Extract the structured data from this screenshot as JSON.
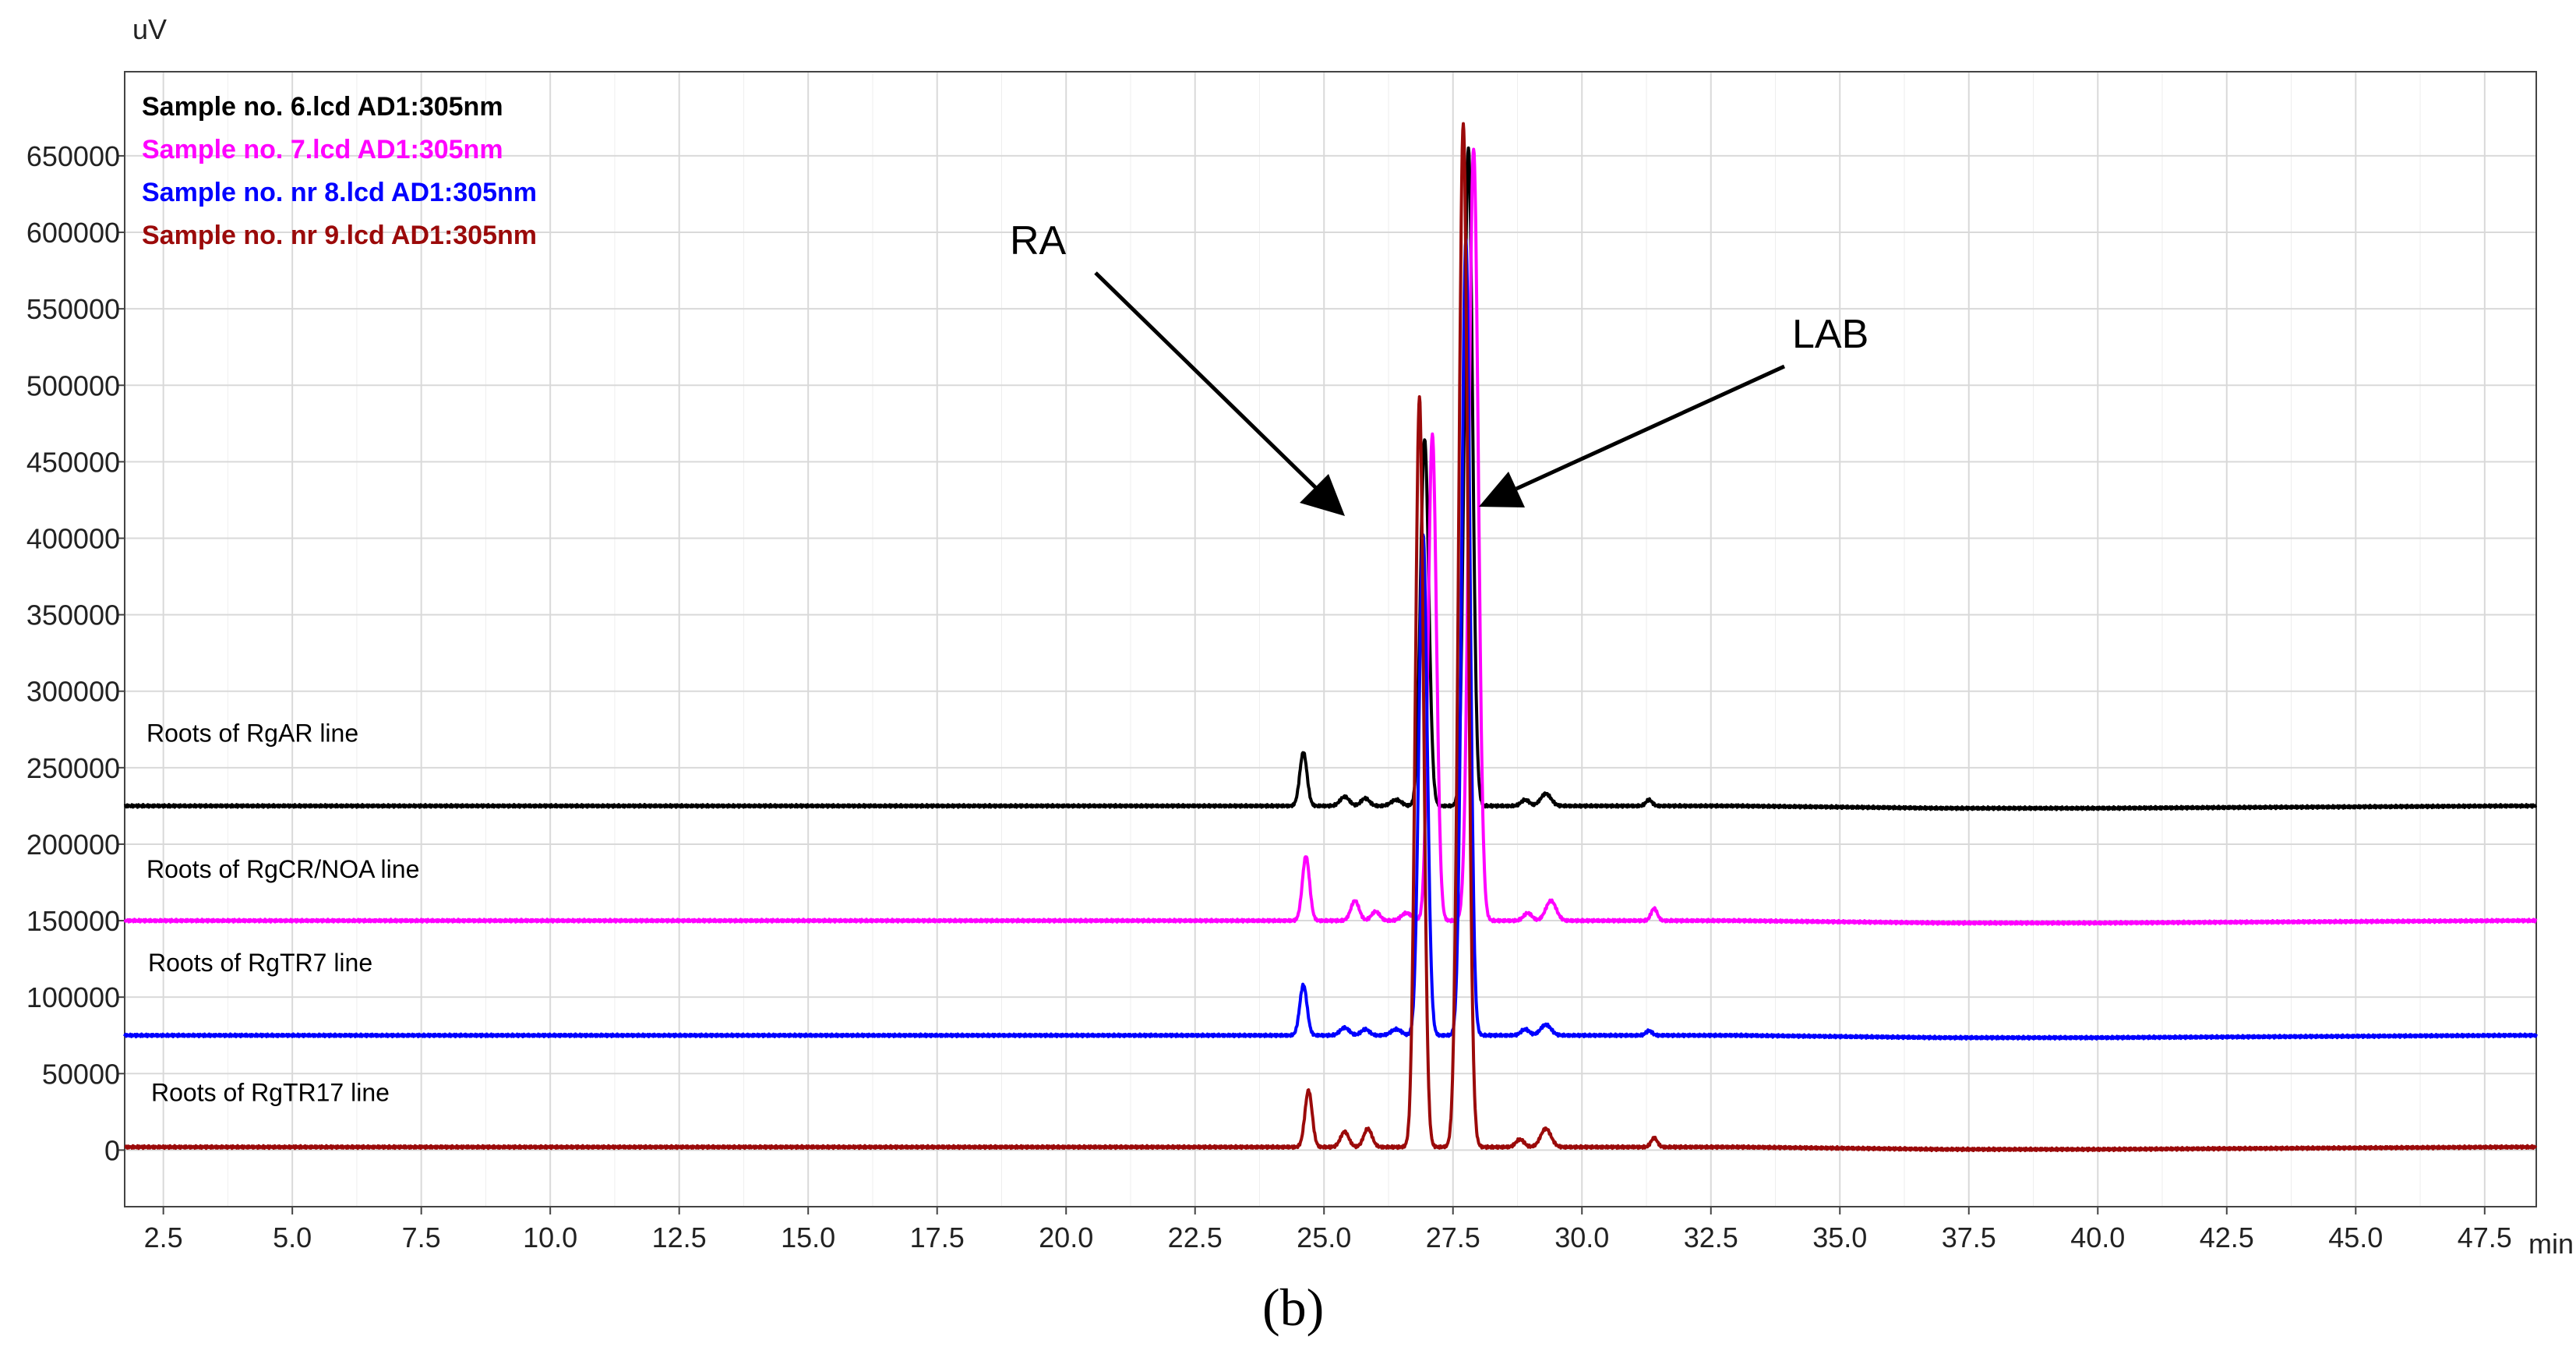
{
  "chart_data": {
    "type": "line",
    "title": "",
    "xlabel": "min",
    "ylabel": "uV",
    "xlim": [
      1.75,
      48.5
    ],
    "ylim": [
      -37000,
      705000
    ],
    "grid": true,
    "xticks": [
      "2.5",
      "5.0",
      "7.5",
      "10.0",
      "12.5",
      "15.0",
      "17.5",
      "20.0",
      "22.5",
      "25.0",
      "27.5",
      "30.0",
      "32.5",
      "35.0",
      "37.5",
      "40.0",
      "42.5",
      "45.0",
      "47.5"
    ],
    "yticks": [
      "0",
      "50000",
      "100000",
      "150000",
      "200000",
      "250000",
      "300000",
      "350000",
      "400000",
      "450000",
      "500000",
      "550000",
      "600000",
      "650000"
    ],
    "legend_position": "top-left",
    "legend": [
      "Sample no. 6.lcd AD1:305nm",
      "Sample no. 7.lcd AD1:305nm",
      "Sample no. nr 8.lcd AD1:305nm",
      "Sample no. nr 9.lcd AD1:305nm"
    ],
    "series": [
      {
        "name": "Sample no. 6.lcd AD1:305nm",
        "label": "Roots of RgAR line",
        "color": "#000000",
        "baseline": 225000,
        "peaks": [
          [
            24.6,
            35000,
            0.07
          ],
          [
            25.4,
            6000,
            0.09
          ],
          [
            25.8,
            5000,
            0.08
          ],
          [
            26.4,
            4000,
            0.1
          ],
          [
            26.95,
            240000,
            0.08
          ],
          [
            27.8,
            430000,
            0.08
          ],
          [
            28.9,
            4000,
            0.08
          ],
          [
            29.3,
            8000,
            0.1
          ],
          [
            31.3,
            4000,
            0.06
          ]
        ]
      },
      {
        "name": "Sample no. 7.lcd AD1:305nm",
        "label": "Roots of RgCR/NOA line",
        "color": "#ff00ff",
        "baseline": 150000,
        "peaks": [
          [
            24.65,
            42000,
            0.07
          ],
          [
            25.6,
            13000,
            0.08
          ],
          [
            26.0,
            6000,
            0.08
          ],
          [
            26.6,
            5000,
            0.1
          ],
          [
            27.1,
            318000,
            0.08
          ],
          [
            27.9,
            505000,
            0.09
          ],
          [
            28.95,
            5000,
            0.08
          ],
          [
            29.4,
            13000,
            0.1
          ],
          [
            31.4,
            8000,
            0.06
          ]
        ]
      },
      {
        "name": "Sample no. nr 8.lcd AD1:305nm",
        "label": "Roots of RgTR7 line",
        "color": "#0000ff",
        "baseline": 75000,
        "peaks": [
          [
            24.6,
            33000,
            0.07
          ],
          [
            25.4,
            5000,
            0.09
          ],
          [
            25.8,
            4000,
            0.08
          ],
          [
            26.4,
            4000,
            0.1
          ],
          [
            26.92,
            328000,
            0.08
          ],
          [
            27.75,
            520000,
            0.08
          ],
          [
            28.9,
            4000,
            0.08
          ],
          [
            29.3,
            7000,
            0.1
          ],
          [
            31.3,
            3000,
            0.06
          ]
        ]
      },
      {
        "name": "Sample no. nr 9.lcd AD1:305nm",
        "label": "Roots of RgTR17 line",
        "color": "#9b0a0a",
        "baseline": 2000,
        "peaks": [
          [
            24.7,
            37000,
            0.07
          ],
          [
            25.4,
            10000,
            0.08
          ],
          [
            25.85,
            12000,
            0.08
          ],
          [
            26.85,
            490000,
            0.08
          ],
          [
            27.7,
            669000,
            0.09
          ],
          [
            28.8,
            5000,
            0.08
          ],
          [
            29.3,
            12000,
            0.1
          ],
          [
            31.4,
            6000,
            0.06
          ]
        ]
      }
    ],
    "annotations": [
      {
        "text": "RA",
        "x": 26.4,
        "y": 400000
      },
      {
        "text": "LAB",
        "x": 28.3,
        "y": 420000
      }
    ],
    "caption": "(b)"
  }
}
